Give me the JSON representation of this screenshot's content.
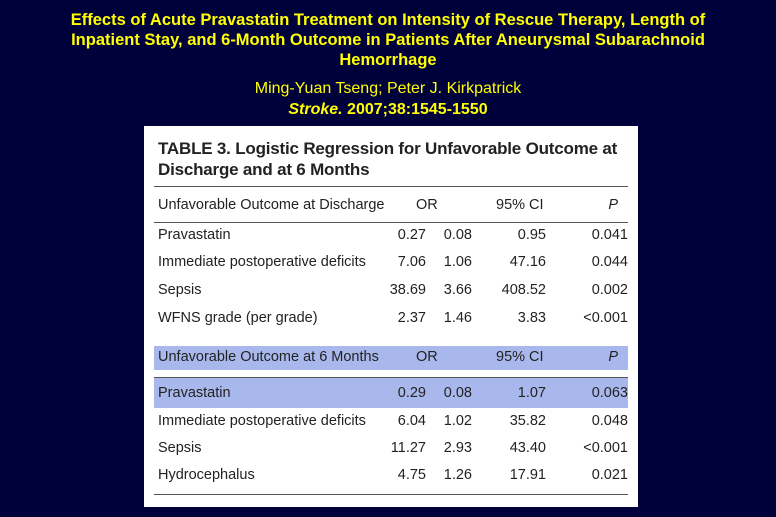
{
  "slide": {
    "title_line1": "Effects of Acute Pravastatin Treatment on Intensity of Rescue Therapy, Length of",
    "title_line2": "Inpatient Stay, and 6-Month Outcome in Patients After Aneurysmal Subarachnoid",
    "title_line3": "Hemorrhage",
    "authors": "Ming-Yuan Tseng; Peter J. Kirkpatrick",
    "journal": "Stroke.",
    "citation_rest": " 2007;38:1545-1550"
  },
  "table": {
    "title_line1": "TABLE 3.   Logistic Regression for Unfavorable Outcome at",
    "title_line2": "Discharge and at 6 Months",
    "section1": {
      "header": {
        "label": "Unfavorable Outcome at Discharge",
        "or": "OR",
        "ci": "95% CI",
        "p": "P"
      },
      "rows": [
        {
          "label": "Pravastatin",
          "or": "0.27",
          "lo": "0.08",
          "hi": "0.95",
          "p": "0.041"
        },
        {
          "label": "Immediate postoperative deficits",
          "or": "7.06",
          "lo": "1.06",
          "hi": "47.16",
          "p": "0.044"
        },
        {
          "label": "Sepsis",
          "or": "38.69",
          "lo": "3.66",
          "hi": "408.52",
          "p": "0.002"
        },
        {
          "label": "WFNS grade (per grade)",
          "or": "2.37",
          "lo": "1.46",
          "hi": "3.83",
          "p": "<0.001"
        }
      ]
    },
    "section2": {
      "header": {
        "label": "Unfavorable Outcome at 6 Months",
        "or": "OR",
        "ci": "95% CI",
        "p": "P"
      },
      "rows": [
        {
          "label": "Pravastatin",
          "or": "0.29",
          "lo": "0.08",
          "hi": "1.07",
          "p": "0.063"
        },
        {
          "label": "Immediate postoperative deficits",
          "or": "6.04",
          "lo": "1.02",
          "hi": "35.82",
          "p": "0.048"
        },
        {
          "label": "Sepsis",
          "or": "11.27",
          "lo": "2.93",
          "hi": "43.40",
          "p": "<0.001"
        },
        {
          "label": "Hydrocephalus",
          "or": "4.75",
          "lo": "1.26",
          "hi": "17.91",
          "p": "0.021"
        }
      ]
    }
  },
  "colors": {
    "background": "#00003a",
    "title_text": "#ffff00",
    "highlight_band": "#a9b8ec"
  }
}
